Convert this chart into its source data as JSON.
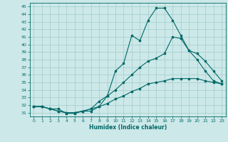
{
  "xlabel": "Humidex (Indice chaleur)",
  "ylabel": "",
  "xlim": [
    -0.5,
    23.5
  ],
  "ylim": [
    30.5,
    45.5
  ],
  "xticks": [
    0,
    1,
    2,
    3,
    4,
    5,
    6,
    7,
    8,
    9,
    10,
    11,
    12,
    13,
    14,
    15,
    16,
    17,
    18,
    19,
    20,
    21,
    22,
    23
  ],
  "yticks": [
    31,
    32,
    33,
    34,
    35,
    36,
    37,
    38,
    39,
    40,
    41,
    42,
    43,
    44,
    45
  ],
  "bg_color": "#cce8e8",
  "line_color": "#006868",
  "grid_color": "#aad0d0",
  "curve1_x": [
    0,
    1,
    2,
    3,
    4,
    5,
    6,
    7,
    8,
    9,
    10,
    11,
    12,
    13,
    14,
    15,
    16,
    17,
    18,
    19,
    20,
    21,
    22,
    23
  ],
  "curve1_y": [
    31.8,
    31.8,
    31.5,
    31.5,
    30.9,
    30.9,
    31.2,
    31.2,
    31.8,
    33.2,
    36.5,
    37.5,
    41.2,
    40.5,
    43.2,
    44.8,
    44.8,
    43.2,
    41.2,
    39.2,
    38.0,
    36.5,
    35.2,
    34.8
  ],
  "curve2_x": [
    0,
    1,
    2,
    3,
    4,
    5,
    6,
    7,
    8,
    9,
    10,
    11,
    12,
    13,
    14,
    15,
    16,
    17,
    18,
    19,
    20,
    21,
    22,
    23
  ],
  "curve2_y": [
    31.8,
    31.8,
    31.5,
    31.2,
    31.0,
    31.0,
    31.2,
    31.5,
    32.5,
    33.2,
    34.0,
    35.0,
    36.0,
    37.0,
    37.8,
    38.2,
    38.8,
    41.0,
    40.8,
    39.2,
    38.8,
    37.8,
    36.5,
    35.2
  ],
  "curve3_x": [
    0,
    1,
    2,
    3,
    4,
    5,
    6,
    7,
    8,
    9,
    10,
    11,
    12,
    13,
    14,
    15,
    16,
    17,
    18,
    19,
    20,
    21,
    22,
    23
  ],
  "curve3_y": [
    31.8,
    31.8,
    31.5,
    31.2,
    31.0,
    31.0,
    31.2,
    31.5,
    31.8,
    32.2,
    32.8,
    33.2,
    33.8,
    34.2,
    34.8,
    35.0,
    35.2,
    35.5,
    35.5,
    35.5,
    35.5,
    35.2,
    35.0,
    34.8
  ]
}
